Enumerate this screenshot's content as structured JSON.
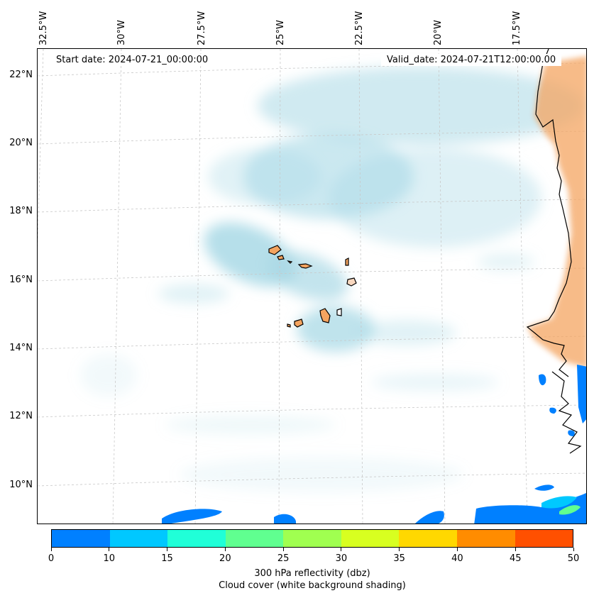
{
  "header": {
    "start_date": "Start date: 2024-07-21_00:00:00",
    "valid_date": "Valid_date: 2024-07-21T12:00:00.00"
  },
  "longitude_labels": [
    "32.5°W",
    "30°W",
    "27.5°W",
    "25°W",
    "22.5°W",
    "20°W",
    "17.5°W"
  ],
  "latitude_labels": [
    "22°N",
    "20°N",
    "18°N",
    "16°N",
    "14°N",
    "12°N",
    "10°N"
  ],
  "colorbar": {
    "ticks": [
      "0",
      "10",
      "15",
      "20",
      "25",
      "30",
      "35",
      "40",
      "45",
      "50"
    ],
    "colors": [
      "#0080ff",
      "#00c8ff",
      "#20ffd8",
      "#60ff90",
      "#a0ff50",
      "#d8ff20",
      "#ffd800",
      "#ff8c00",
      "#ff5000"
    ],
    "label_line1": "300 hPa reflectivity (dbz)",
    "label_line2": "Cloud cover (white background shading)"
  },
  "colors": {
    "cloud": "#a9d9e6",
    "land": "#f4a460",
    "coastline": "#000000",
    "gridline": "#c8c8c8"
  }
}
